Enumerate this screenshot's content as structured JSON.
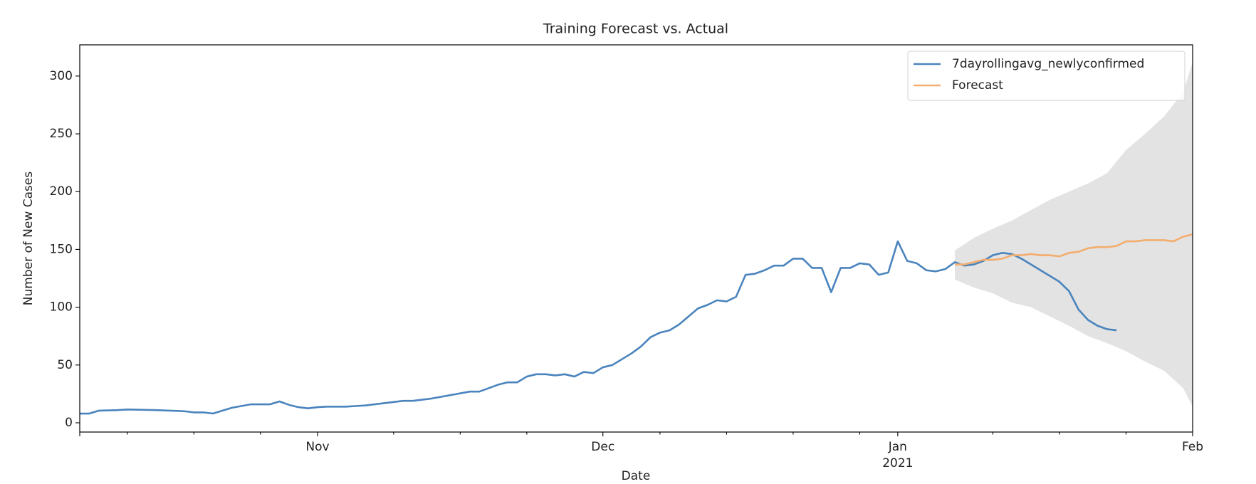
{
  "chart_data": {
    "type": "line",
    "title": "Training Forecast vs. Actual",
    "xlabel": "Date",
    "ylabel": "Number of New Cases",
    "xlim": [
      "2020-10-07",
      "2021-02-01"
    ],
    "xticks": [
      {
        "value": "2020-11-01",
        "label": "Nov"
      },
      {
        "value": "2020-12-01",
        "label": "Dec"
      },
      {
        "value": "2021-01-01",
        "label": "Jan\n2021"
      },
      {
        "value": "2021-02-01",
        "label": "Feb"
      }
    ],
    "xminorticks": [
      "2020-10-12",
      "2020-10-19",
      "2020-10-26",
      "2020-11-09",
      "2020-11-16",
      "2020-11-23",
      "2020-12-07",
      "2020-12-14",
      "2020-12-21",
      "2020-12-28",
      "2021-01-11",
      "2021-01-18",
      "2021-01-25"
    ],
    "ylim": [
      -8,
      327
    ],
    "yticks": [
      0,
      50,
      100,
      150,
      200,
      250,
      300
    ],
    "legend": "upper right",
    "series": [
      {
        "name": "7dayrollingavg_newlyconfirmed",
        "color": "#4a84bd",
        "x": [
          "2020-10-07",
          "2020-10-08",
          "2020-10-09",
          "2020-10-11",
          "2020-10-12",
          "2020-10-15",
          "2020-10-18",
          "2020-10-19",
          "2020-10-20",
          "2020-10-21",
          "2020-10-23",
          "2020-10-25",
          "2020-10-27",
          "2020-10-28",
          "2020-10-29",
          "2020-10-30",
          "2020-10-31",
          "2020-11-01",
          "2020-11-02",
          "2020-11-04",
          "2020-11-06",
          "2020-11-08",
          "2020-11-10",
          "2020-11-11",
          "2020-11-13",
          "2020-11-15",
          "2020-11-17",
          "2020-11-18",
          "2020-11-19",
          "2020-11-20",
          "2020-11-21",
          "2020-11-22",
          "2020-11-23",
          "2020-11-24",
          "2020-11-25",
          "2020-11-26",
          "2020-11-27",
          "2020-11-28",
          "2020-11-29",
          "2020-11-30",
          "2020-12-01",
          "2020-12-02",
          "2020-12-03",
          "2020-12-04",
          "2020-12-05",
          "2020-12-06",
          "2020-12-07",
          "2020-12-08",
          "2020-12-09",
          "2020-12-10",
          "2020-12-11",
          "2020-12-12",
          "2020-12-13",
          "2020-12-14",
          "2020-12-15",
          "2020-12-16",
          "2020-12-17",
          "2020-12-18",
          "2020-12-19",
          "2020-12-20",
          "2020-12-21",
          "2020-12-22",
          "2020-12-23",
          "2020-12-24",
          "2020-12-25",
          "2020-12-26",
          "2020-12-27",
          "2020-12-28",
          "2020-12-29",
          "2020-12-30",
          "2020-12-31",
          "2021-01-01",
          "2021-01-02",
          "2021-01-03",
          "2021-01-04",
          "2021-01-05",
          "2021-01-06",
          "2021-01-07",
          "2021-01-08",
          "2021-01-09",
          "2021-01-10",
          "2021-01-11",
          "2021-01-12",
          "2021-01-13",
          "2021-01-14",
          "2021-01-15",
          "2021-01-16",
          "2021-01-17",
          "2021-01-18",
          "2021-01-19",
          "2021-01-20",
          "2021-01-21",
          "2021-01-22",
          "2021-01-23",
          "2021-01-24"
        ],
        "values": [
          8,
          8,
          10.5,
          11,
          11.5,
          11,
          10,
          9,
          9,
          8,
          13,
          16,
          16,
          18.5,
          15.5,
          13.5,
          12.5,
          13.5,
          14,
          14,
          15,
          17,
          19,
          19,
          21,
          24,
          27,
          27,
          30,
          33,
          35,
          35,
          40,
          42,
          42,
          41,
          42,
          40,
          44,
          43,
          48,
          50,
          55,
          60,
          66,
          74,
          78,
          80,
          85,
          92,
          99,
          102,
          106,
          105,
          109,
          128,
          129,
          132,
          136,
          136,
          142,
          142,
          134,
          134,
          113,
          134,
          134,
          138,
          137,
          128,
          130,
          157,
          140,
          138,
          132,
          131,
          133,
          139,
          136,
          137,
          140,
          145,
          147,
          146,
          142,
          137,
          132,
          127,
          122,
          114,
          98,
          89,
          84,
          81,
          80
        ]
      },
      {
        "name": "Forecast",
        "color": "#f3ad6e",
        "x": [
          "2021-01-07",
          "2021-01-08",
          "2021-01-09",
          "2021-01-10",
          "2021-01-11",
          "2021-01-12",
          "2021-01-13",
          "2021-01-14",
          "2021-01-15",
          "2021-01-16",
          "2021-01-17",
          "2021-01-18",
          "2021-01-19",
          "2021-01-20",
          "2021-01-21",
          "2021-01-22",
          "2021-01-23",
          "2021-01-24",
          "2021-01-25",
          "2021-01-26",
          "2021-01-27",
          "2021-01-28",
          "2021-01-29",
          "2021-01-30",
          "2021-01-31",
          "2021-02-01"
        ],
        "values": [
          137,
          137,
          139,
          141,
          141,
          142,
          145,
          145,
          146,
          145,
          145,
          144,
          147,
          148,
          151,
          152,
          152,
          153,
          157,
          157,
          158,
          158,
          158,
          157,
          161,
          163
        ]
      }
    ],
    "interval": {
      "color": "#e3e3e3",
      "x": [
        "2021-01-07",
        "2021-01-09",
        "2021-01-11",
        "2021-01-13",
        "2021-01-15",
        "2021-01-17",
        "2021-01-19",
        "2021-01-21",
        "2021-01-23",
        "2021-01-25",
        "2021-01-27",
        "2021-01-29",
        "2021-01-31",
        "2021-02-01"
      ],
      "lower": [
        124,
        117,
        112,
        104,
        100,
        92,
        84,
        75,
        69,
        62,
        53,
        45,
        30,
        14
      ],
      "upper": [
        149,
        160,
        168,
        175,
        184,
        193,
        200,
        207,
        216,
        236,
        250,
        265,
        286,
        312
      ]
    }
  }
}
